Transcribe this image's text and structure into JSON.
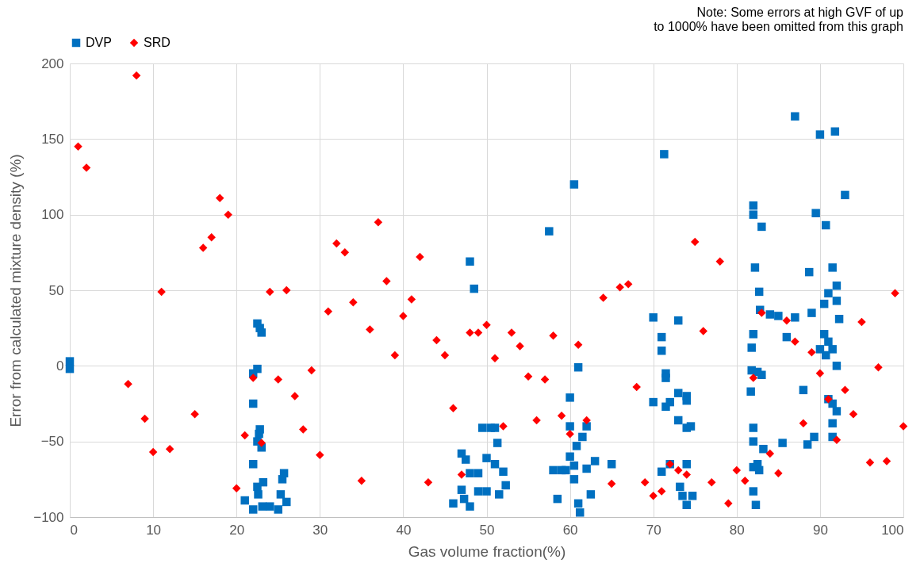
{
  "chart_data": {
    "type": "scatter",
    "xlabel": "Gas volume fraction(%)",
    "ylabel": "Error from calculated mixture density (%)",
    "annotations": [
      "Note: Some errors at high GVF of up to 1000% have been omitted from this graph"
    ],
    "xlim": [
      0,
      100
    ],
    "xticks": [
      0,
      10,
      20,
      30,
      40,
      50,
      60,
      70,
      80,
      90,
      100
    ],
    "ylim": [
      -100,
      200
    ],
    "yticks": [
      -100,
      -50,
      0,
      50,
      100,
      150,
      200
    ],
    "grid": true,
    "legend": "top",
    "series": [
      {
        "name": "DVP",
        "color": "#0070c0",
        "marker": "square",
        "x": [
          0,
          0,
          21,
          22,
          22,
          22,
          22,
          22.5,
          22.5,
          22.8,
          23,
          22.8,
          22.7,
          22.5,
          22.5,
          22.6,
          23.2,
          23,
          23.1,
          24,
          25,
          25.3,
          25.5,
          25.7,
          26,
          46,
          47,
          47,
          47.5,
          47.3,
          48,
          48,
          48,
          48.5,
          49,
          49,
          49.5,
          50,
          50,
          50.5,
          51,
          51,
          51.3,
          51.5,
          52,
          52.3,
          57.5,
          60.5,
          58,
          58.5,
          59,
          59.5,
          60,
          60,
          60,
          60.5,
          60.5,
          60.8,
          61,
          61,
          61.2,
          61.5,
          62,
          62,
          62.5,
          63,
          65,
          70,
          70,
          71,
          71,
          71.3,
          71.5,
          71.5,
          71.5,
          71,
          72,
          72,
          73,
          73,
          73,
          73.2,
          73.5,
          74,
          74,
          74,
          74,
          74,
          74.5,
          74.7,
          82,
          82,
          82,
          81.8,
          81.8,
          81.7,
          82,
          82,
          82,
          82,
          82.3,
          82.2,
          82.7,
          82.8,
          83,
          82.5,
          82.5,
          82.7,
          83,
          83.2,
          84,
          85,
          85.5,
          86,
          87,
          87,
          88,
          88.5,
          88.7,
          89,
          89.3,
          89.5,
          90,
          90,
          90.5,
          90.5,
          90.7,
          90.7,
          91,
          91,
          91,
          91.5,
          91.5,
          91.5,
          91.5,
          91.8,
          92,
          92,
          92,
          92,
          92.3,
          93,
          91.5
        ],
        "values": [
          3,
          -2,
          -89,
          -95,
          -65,
          -25,
          -5,
          -2,
          28,
          25,
          22,
          -42,
          -45,
          -50,
          -80,
          -85,
          -77,
          -54,
          -93,
          -93,
          -95,
          -85,
          -75,
          -71,
          -90,
          -91,
          -82,
          -58,
          -62,
          -88,
          -93,
          -71,
          69,
          51,
          -71,
          -83,
          -41,
          -83,
          -61,
          -41,
          -65,
          -41,
          -51,
          -85,
          -70,
          -79,
          89,
          120,
          -69,
          -88,
          -69,
          -69,
          -21,
          -40,
          -60,
          -75,
          -66,
          -53,
          -91,
          -1,
          -97,
          -47,
          -40,
          -68,
          -85,
          -63,
          -65,
          32,
          -24,
          19,
          10,
          140,
          -5,
          -8,
          -27,
          -70,
          -24,
          -65,
          -18,
          30,
          -36,
          -80,
          -86,
          -20,
          -23,
          -41,
          -65,
          -92,
          -40,
          -86,
          106,
          100,
          21,
          12,
          -3,
          -17,
          -50,
          -41,
          -67,
          -83,
          -92,
          65,
          49,
          37,
          92,
          -4,
          -65,
          -69,
          -6,
          -55,
          34,
          33,
          -51,
          19,
          165,
          32,
          -16,
          -52,
          62,
          35,
          -47,
          101,
          11,
          153,
          41,
          21,
          7,
          93,
          48,
          16,
          -22,
          65,
          11,
          -38,
          -47,
          155,
          53,
          43,
          -30,
          0,
          31,
          113,
          -25
        ]
      },
      {
        "name": "SRD",
        "color": "#ff0000",
        "marker": "diamond",
        "x": [
          1,
          2,
          8,
          7,
          9,
          10,
          11,
          12,
          15,
          16,
          17,
          18,
          19,
          20,
          21,
          22,
          23,
          24,
          25,
          26,
          27,
          28,
          29,
          30,
          31,
          32,
          33,
          34,
          35,
          36,
          37,
          38,
          39,
          40,
          41,
          42,
          43,
          44,
          45,
          46,
          47,
          48,
          49,
          50,
          51,
          52,
          53,
          54,
          55,
          56,
          57,
          58,
          59,
          60,
          61,
          62,
          64,
          65,
          66,
          67,
          68,
          69,
          70,
          71,
          72,
          73,
          74,
          75,
          76,
          77,
          78,
          79,
          80,
          81,
          82,
          83,
          84,
          85,
          86,
          87,
          88,
          89,
          90,
          91,
          92,
          93,
          94,
          95,
          96,
          97,
          98,
          99,
          100
        ],
        "values": [
          145,
          131,
          192,
          -12,
          -35,
          -57,
          49,
          -55,
          -32,
          78,
          85,
          111,
          100,
          -81,
          -46,
          -8,
          -51,
          49,
          -9,
          50,
          -20,
          -42,
          -3,
          -59,
          36,
          81,
          75,
          42,
          -76,
          24,
          95,
          56,
          7,
          33,
          44,
          72,
          -77,
          17,
          7,
          -28,
          -72,
          22,
          22,
          27,
          5,
          -40,
          22,
          13,
          -7,
          -36,
          -9,
          20,
          -33,
          -45,
          14,
          -36,
          45,
          -78,
          52,
          54,
          -14,
          -77,
          -86,
          -83,
          -65,
          -69,
          -72,
          82,
          23,
          -77,
          69,
          -91,
          -69,
          -76,
          -8,
          35,
          -58,
          -71,
          30,
          16,
          -38,
          9,
          -5,
          -22,
          -49,
          -16,
          -32,
          29,
          -64,
          -1,
          -63,
          48,
          -40
        ]
      }
    ]
  }
}
